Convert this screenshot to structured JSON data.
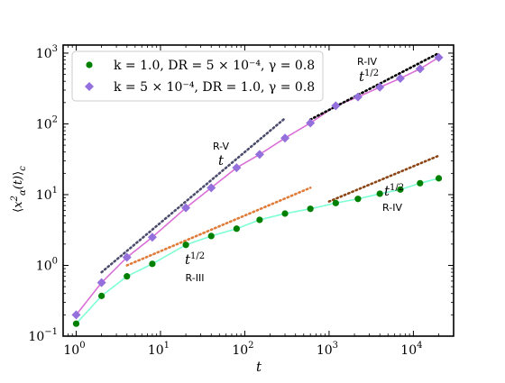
{
  "chart_data": {
    "type": "scatter",
    "xscale": "log",
    "yscale": "log",
    "xlim": [
      0.7,
      30000
    ],
    "ylim": [
      0.1,
      1300
    ],
    "xlabel": "t",
    "ylabel": "⟨x²α(t)⟩c",
    "x_ticks": [
      {
        "value": 1,
        "base": "10",
        "exp": "0"
      },
      {
        "value": 10,
        "base": "10",
        "exp": "1"
      },
      {
        "value": 100,
        "base": "10",
        "exp": "2"
      },
      {
        "value": 1000,
        "base": "10",
        "exp": "3"
      },
      {
        "value": 10000,
        "base": "10",
        "exp": "4"
      }
    ],
    "y_ticks": [
      {
        "value": 0.1,
        "base": "10",
        "exp": "−1"
      },
      {
        "value": 1,
        "base": "10",
        "exp": "0"
      },
      {
        "value": 10,
        "base": "10",
        "exp": "1"
      },
      {
        "value": 100,
        "base": "10",
        "exp": "2"
      },
      {
        "value": 1000,
        "base": "10",
        "exp": "3"
      }
    ],
    "legend_position": "top-left",
    "series": [
      {
        "name": "k = 1.0, DR = 5 × 10⁻⁴, γ = 0.8",
        "color": "#008000",
        "marker": "circle",
        "x": [
          1,
          2,
          4,
          8,
          20,
          40,
          80,
          150,
          300,
          600,
          1200,
          2200,
          4000,
          7000,
          12000,
          20000
        ],
        "y": [
          0.15,
          0.37,
          0.7,
          1.05,
          1.95,
          2.6,
          3.3,
          4.4,
          5.4,
          6.3,
          7.6,
          8.7,
          10.3,
          11.8,
          14.5,
          17.0
        ]
      },
      {
        "name": "k = 5 × 10⁻⁴, DR = 1.0, γ = 0.8",
        "color": "#9370DB",
        "marker": "diamond",
        "x": [
          1,
          2,
          4,
          8,
          20,
          40,
          80,
          150,
          300,
          600,
          1200,
          2200,
          4000,
          7000,
          12000,
          20000
        ],
        "y": [
          0.2,
          0.57,
          1.3,
          2.5,
          6.5,
          12.5,
          24,
          37,
          63,
          103,
          180,
          240,
          330,
          440,
          600,
          870
        ]
      }
    ],
    "fit_curves": [
      {
        "color": "#7FFFD4",
        "x": [
          1,
          2,
          4,
          8,
          20,
          40,
          80,
          150,
          300,
          600,
          1200,
          2200,
          4000,
          7000,
          12000,
          20000
        ],
        "y": [
          0.15,
          0.37,
          0.7,
          1.05,
          1.95,
          2.6,
          3.3,
          4.4,
          5.4,
          6.3,
          7.6,
          8.7,
          10.3,
          11.8,
          14.5,
          17.0
        ]
      },
      {
        "color": "#DA70D6",
        "x": [
          1,
          2,
          4,
          8,
          20,
          40,
          80,
          150,
          300,
          600,
          1200,
          2200,
          4000,
          7000,
          12000,
          20000
        ],
        "y": [
          0.2,
          0.57,
          1.3,
          2.5,
          6.5,
          12.5,
          24,
          37,
          63,
          103,
          180,
          240,
          330,
          440,
          600,
          870
        ]
      }
    ],
    "guide_lines": [
      {
        "label": "R-III",
        "slope_text": "t1/2",
        "color": "#E07B39",
        "x": [
          4,
          600
        ],
        "y": [
          1.0,
          12.5
        ]
      },
      {
        "label": "R-V",
        "slope_text": "t",
        "color": "#4B4B6B",
        "x": [
          2,
          300
        ],
        "y": [
          0.8,
          120
        ]
      },
      {
        "label": "R-IV",
        "slope_text": "t1/2",
        "color": "#000000",
        "x": [
          600,
          20000
        ],
        "y": [
          115,
          1000
        ]
      },
      {
        "label": "R-IV",
        "slope_text": "t1/2",
        "color": "#8B4513",
        "x": [
          1000,
          20000
        ],
        "y": [
          8.0,
          35.5
        ]
      }
    ],
    "annotations": [
      {
        "id": "rv",
        "regime": "R-V",
        "math": "t",
        "sup": ""
      },
      {
        "id": "rIII",
        "regime": "R-III",
        "math": "t",
        "sup": "1/2"
      },
      {
        "id": "rIVtop",
        "regime": "R-IV",
        "math": "t",
        "sup": "1/2"
      },
      {
        "id": "rIVbot",
        "regime": "R-IV",
        "math": "t",
        "sup": "1/2"
      }
    ]
  }
}
